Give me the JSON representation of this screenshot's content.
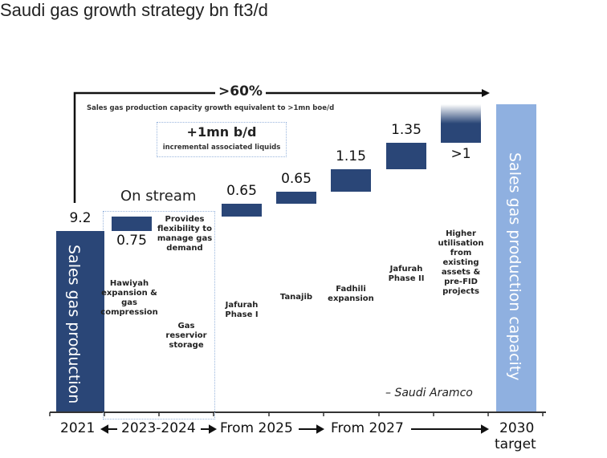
{
  "chart_data": {
    "type": "bar",
    "subtype": "waterfall",
    "title": "Saudi gas growth strategy bn ft3/d",
    "start": {
      "label": "Sales gas production",
      "value": 9.2,
      "value_label": "9.2",
      "period": "2021"
    },
    "steps": [
      {
        "value": 0.75,
        "value_label": "0.75",
        "project": "Hawiyah expansion & gas compression"
      },
      {
        "value": 0.65,
        "value_label": "0.65",
        "project": "Jafurah Phase I"
      },
      {
        "value": 0.65,
        "value_label": "0.65",
        "project": "Tanajib"
      },
      {
        "value": 1.15,
        "value_label": "1.15",
        "project": "Fadhili expansion"
      },
      {
        "value": 1.35,
        "value_label": "1.35",
        "project": "Jafurah Phase II"
      },
      {
        "value": 1,
        "value_label": ">1",
        "project": "Higher utilisation from existing assets & pre-FID projects"
      }
    ],
    "end": {
      "label": "Sales gas production capacity",
      "period": "2030",
      "period_sub": "target"
    },
    "growth_label": ">60%",
    "growth_note": "Sales gas production capacity growth equivalent to >1mn boe/d",
    "liquids_value": "+1mn b/d",
    "liquids_note": "incremental associated liquids",
    "on_stream": "On stream",
    "storage_note": "Provides flexibility to manage gas demand",
    "storage_project": "Gas reservior storage",
    "source": "– Saudi Aramco",
    "periods": [
      "2021",
      "2023-2024",
      "From 2025",
      "From 2027"
    ],
    "colors": {
      "bar": "#2a4677",
      "target": "#8fb0e0"
    }
  }
}
